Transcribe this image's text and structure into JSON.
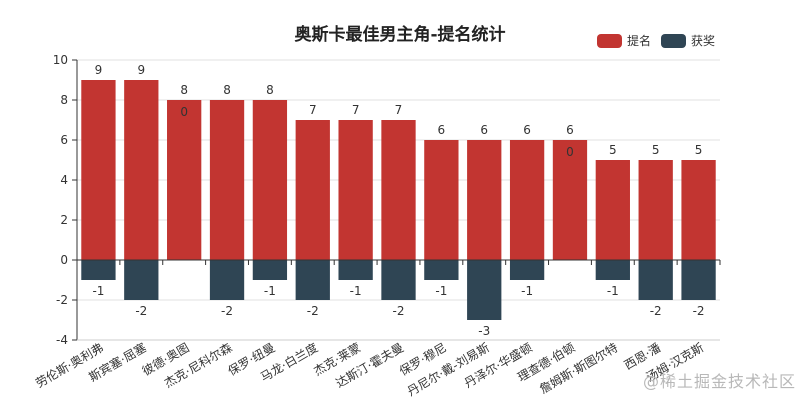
{
  "chart_data": {
    "type": "bar",
    "title": "奥斯卡最佳男主角-提名统计",
    "xlabel": "",
    "ylabel": "",
    "ylim": [
      -4,
      10
    ],
    "yticks": [
      -4,
      -2,
      0,
      2,
      4,
      6,
      8,
      10
    ],
    "grid": true,
    "legend_position": "top-right",
    "stacked": true,
    "categories": [
      "劳伦斯·奥利弗",
      "斯宾塞·屈塞",
      "彼德·奥图",
      "杰克·尼科尔森",
      "保罗·纽曼",
      "马龙·白兰度",
      "杰克·莱蒙",
      "达斯汀·霍夫曼",
      "保罗·穆尼",
      "丹尼尔·戴-刘易斯",
      "丹泽尔·华盛顿",
      "理查德·伯顿",
      "詹姆斯·斯图尔特",
      "西恩·潘",
      "汤姆·汉克斯"
    ],
    "series": [
      {
        "name": "提名",
        "color": "#c23531",
        "values": [
          9,
          9,
          8,
          8,
          8,
          7,
          7,
          7,
          6,
          6,
          6,
          6,
          5,
          5,
          5
        ]
      },
      {
        "name": "获奖",
        "color": "#2f4554",
        "values": [
          -1,
          -2,
          0,
          -2,
          -1,
          -2,
          -1,
          -2,
          -1,
          -3,
          -1,
          0,
          -1,
          -2,
          -2
        ]
      }
    ]
  },
  "legend": {
    "items": [
      {
        "label": "提名",
        "color": "#c23531"
      },
      {
        "label": "获奖",
        "color": "#2f4554"
      }
    ]
  },
  "watermark": "@稀土掘金技术社区"
}
